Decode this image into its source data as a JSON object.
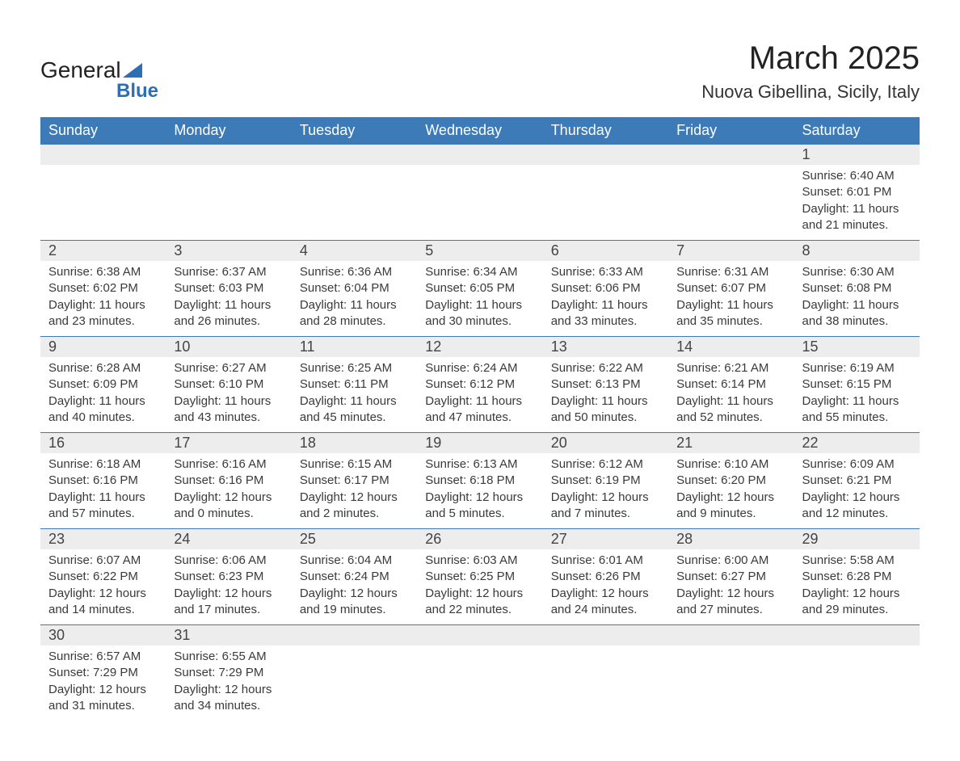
{
  "logo": {
    "text1": "General",
    "text2": "Blue",
    "shape_color": "#2e6fb4"
  },
  "title": "March 2025",
  "location": "Nuova Gibellina, Sicily, Italy",
  "day_headers": [
    "Sunday",
    "Monday",
    "Tuesday",
    "Wednesday",
    "Thursday",
    "Friday",
    "Saturday"
  ],
  "colors": {
    "header_bg": "#3c7ab8",
    "header_text": "#ffffff",
    "daynum_bg": "#ededed",
    "row_border": "#3c7ab8",
    "text": "#333333",
    "background": "#ffffff"
  },
  "fonts": {
    "title_size_pt": 30,
    "location_size_pt": 17,
    "header_size_pt": 14,
    "daynum_size_pt": 14,
    "detail_size_pt": 11
  },
  "weeks": [
    [
      null,
      null,
      null,
      null,
      null,
      null,
      {
        "n": "1",
        "sunrise": "6:40 AM",
        "sunset": "6:01 PM",
        "daylight": "11 hours and 21 minutes."
      }
    ],
    [
      {
        "n": "2",
        "sunrise": "6:38 AM",
        "sunset": "6:02 PM",
        "daylight": "11 hours and 23 minutes."
      },
      {
        "n": "3",
        "sunrise": "6:37 AM",
        "sunset": "6:03 PM",
        "daylight": "11 hours and 26 minutes."
      },
      {
        "n": "4",
        "sunrise": "6:36 AM",
        "sunset": "6:04 PM",
        "daylight": "11 hours and 28 minutes."
      },
      {
        "n": "5",
        "sunrise": "6:34 AM",
        "sunset": "6:05 PM",
        "daylight": "11 hours and 30 minutes."
      },
      {
        "n": "6",
        "sunrise": "6:33 AM",
        "sunset": "6:06 PM",
        "daylight": "11 hours and 33 minutes."
      },
      {
        "n": "7",
        "sunrise": "6:31 AM",
        "sunset": "6:07 PM",
        "daylight": "11 hours and 35 minutes."
      },
      {
        "n": "8",
        "sunrise": "6:30 AM",
        "sunset": "6:08 PM",
        "daylight": "11 hours and 38 minutes."
      }
    ],
    [
      {
        "n": "9",
        "sunrise": "6:28 AM",
        "sunset": "6:09 PM",
        "daylight": "11 hours and 40 minutes."
      },
      {
        "n": "10",
        "sunrise": "6:27 AM",
        "sunset": "6:10 PM",
        "daylight": "11 hours and 43 minutes."
      },
      {
        "n": "11",
        "sunrise": "6:25 AM",
        "sunset": "6:11 PM",
        "daylight": "11 hours and 45 minutes."
      },
      {
        "n": "12",
        "sunrise": "6:24 AM",
        "sunset": "6:12 PM",
        "daylight": "11 hours and 47 minutes."
      },
      {
        "n": "13",
        "sunrise": "6:22 AM",
        "sunset": "6:13 PM",
        "daylight": "11 hours and 50 minutes."
      },
      {
        "n": "14",
        "sunrise": "6:21 AM",
        "sunset": "6:14 PM",
        "daylight": "11 hours and 52 minutes."
      },
      {
        "n": "15",
        "sunrise": "6:19 AM",
        "sunset": "6:15 PM",
        "daylight": "11 hours and 55 minutes."
      }
    ],
    [
      {
        "n": "16",
        "sunrise": "6:18 AM",
        "sunset": "6:16 PM",
        "daylight": "11 hours and 57 minutes."
      },
      {
        "n": "17",
        "sunrise": "6:16 AM",
        "sunset": "6:16 PM",
        "daylight": "12 hours and 0 minutes."
      },
      {
        "n": "18",
        "sunrise": "6:15 AM",
        "sunset": "6:17 PM",
        "daylight": "12 hours and 2 minutes."
      },
      {
        "n": "19",
        "sunrise": "6:13 AM",
        "sunset": "6:18 PM",
        "daylight": "12 hours and 5 minutes."
      },
      {
        "n": "20",
        "sunrise": "6:12 AM",
        "sunset": "6:19 PM",
        "daylight": "12 hours and 7 minutes."
      },
      {
        "n": "21",
        "sunrise": "6:10 AM",
        "sunset": "6:20 PM",
        "daylight": "12 hours and 9 minutes."
      },
      {
        "n": "22",
        "sunrise": "6:09 AM",
        "sunset": "6:21 PM",
        "daylight": "12 hours and 12 minutes."
      }
    ],
    [
      {
        "n": "23",
        "sunrise": "6:07 AM",
        "sunset": "6:22 PM",
        "daylight": "12 hours and 14 minutes."
      },
      {
        "n": "24",
        "sunrise": "6:06 AM",
        "sunset": "6:23 PM",
        "daylight": "12 hours and 17 minutes."
      },
      {
        "n": "25",
        "sunrise": "6:04 AM",
        "sunset": "6:24 PM",
        "daylight": "12 hours and 19 minutes."
      },
      {
        "n": "26",
        "sunrise": "6:03 AM",
        "sunset": "6:25 PM",
        "daylight": "12 hours and 22 minutes."
      },
      {
        "n": "27",
        "sunrise": "6:01 AM",
        "sunset": "6:26 PM",
        "daylight": "12 hours and 24 minutes."
      },
      {
        "n": "28",
        "sunrise": "6:00 AM",
        "sunset": "6:27 PM",
        "daylight": "12 hours and 27 minutes."
      },
      {
        "n": "29",
        "sunrise": "5:58 AM",
        "sunset": "6:28 PM",
        "daylight": "12 hours and 29 minutes."
      }
    ],
    [
      {
        "n": "30",
        "sunrise": "6:57 AM",
        "sunset": "7:29 PM",
        "daylight": "12 hours and 31 minutes."
      },
      {
        "n": "31",
        "sunrise": "6:55 AM",
        "sunset": "7:29 PM",
        "daylight": "12 hours and 34 minutes."
      },
      null,
      null,
      null,
      null,
      null
    ]
  ],
  "labels": {
    "sunrise": "Sunrise: ",
    "sunset": "Sunset: ",
    "daylight": "Daylight: "
  }
}
